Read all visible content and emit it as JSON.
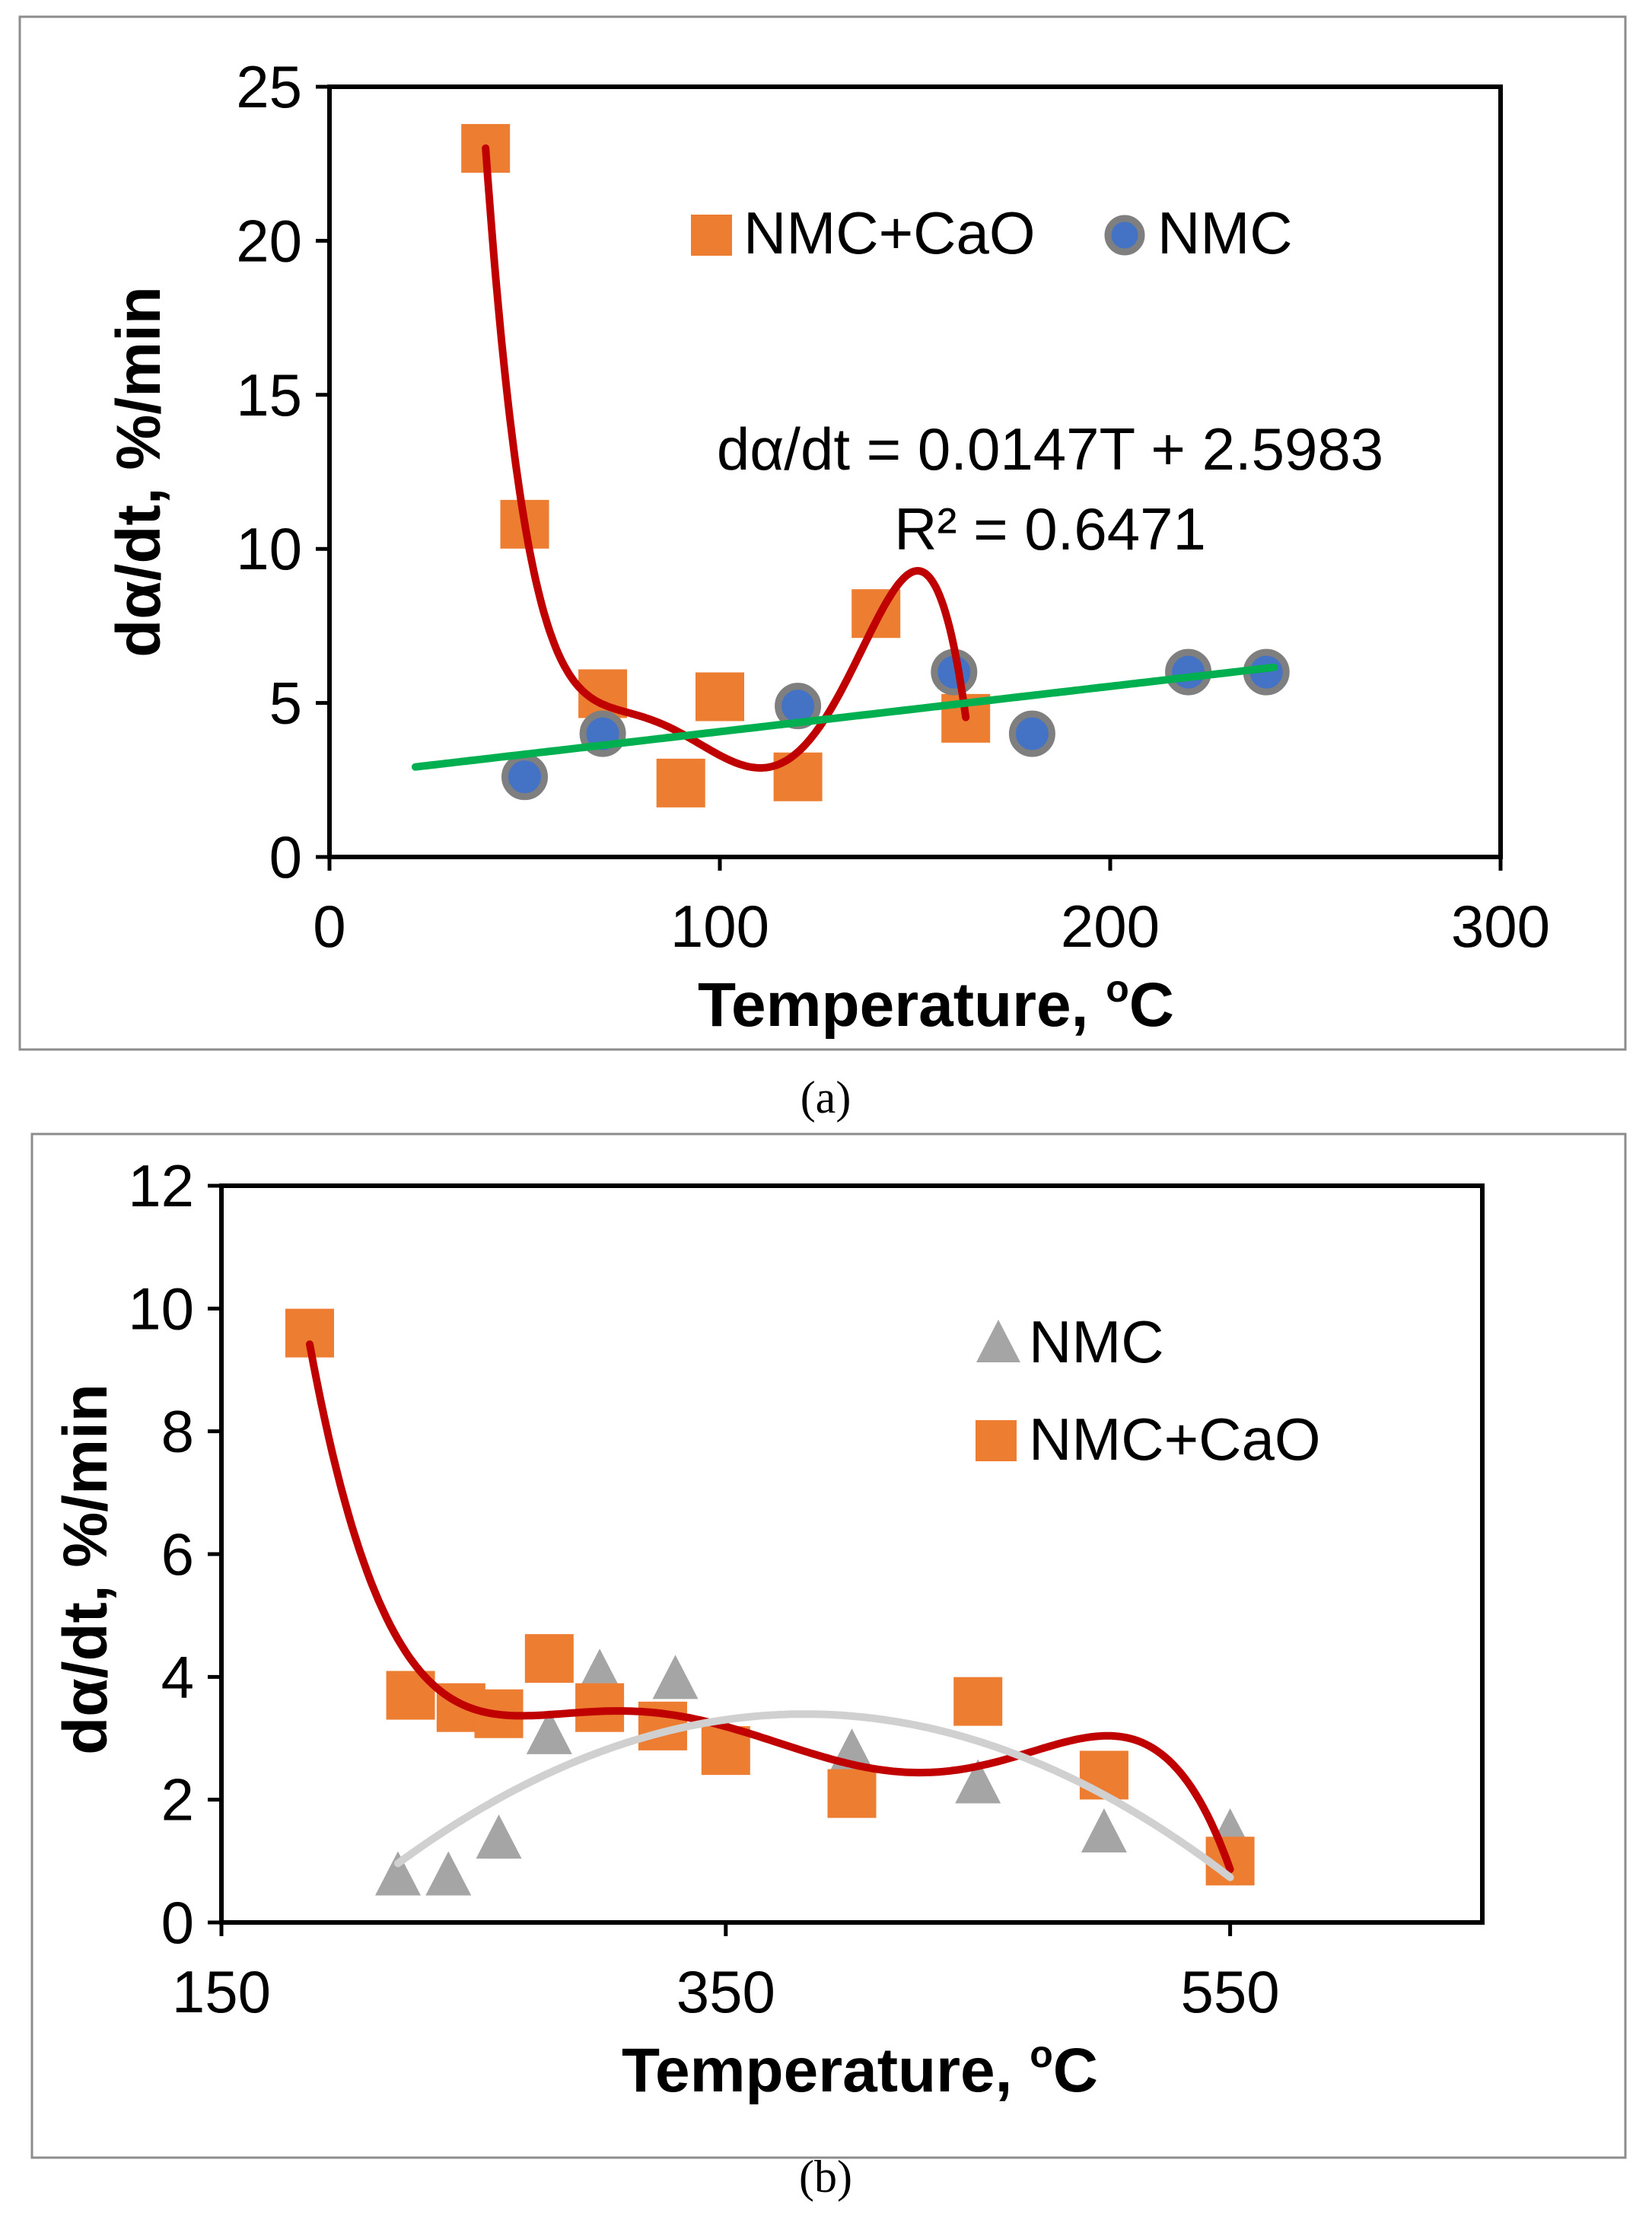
{
  "chart_data": [
    {
      "type": "scatter",
      "panel_label": "(a)",
      "xlabel": "Temperature, ",
      "xlabel_sup": "o",
      "xlabel_suffix": "C",
      "ylabel": "dα/dt, %/min",
      "xlim": [
        0,
        300
      ],
      "ylim": [
        0,
        25
      ],
      "x_ticks": [
        0,
        100,
        200,
        300
      ],
      "y_ticks": [
        0,
        5,
        10,
        15,
        20,
        25
      ],
      "grid": false,
      "legend_position": "top-right",
      "annotation": {
        "equation": "dα/dt = 0.0147T + 2.5983",
        "r_squared": "R² = 0.6471"
      },
      "series": [
        {
          "name": "NMC+CaO",
          "marker": "square",
          "color": "#ED7D31",
          "points": [
            [
              40,
              23.0
            ],
            [
              50,
              10.8
            ],
            [
              70,
              5.3
            ],
            [
              90,
              2.4
            ],
            [
              100,
              5.2
            ],
            [
              120,
              2.6
            ],
            [
              140,
              7.9
            ],
            [
              163,
              4.5
            ]
          ]
        },
        {
          "name": "NMC",
          "marker": "circle",
          "color": "#4472C4",
          "edge_color": "#7F7F7F",
          "points": [
            [
              50,
              2.6
            ],
            [
              70,
              4.0
            ],
            [
              120,
              4.9
            ],
            [
              160,
              6.0
            ],
            [
              180,
              4.0
            ],
            [
              220,
              6.0
            ],
            [
              240,
              6.0
            ]
          ]
        }
      ],
      "trendlines": [
        {
          "of_series": "NMC+CaO",
          "kind": "polynomial",
          "color": "#C00000",
          "x_range": [
            40,
            163
          ]
        },
        {
          "of_series": "NMC",
          "kind": "linear",
          "color": "#00B050",
          "slope": 0.0147,
          "intercept": 2.5983,
          "x_range": [
            22,
            242
          ]
        }
      ]
    },
    {
      "type": "scatter",
      "panel_label": "(b)",
      "xlabel": "Temperature, ",
      "xlabel_sup": "o",
      "xlabel_suffix": "C",
      "ylabel": "dα/dt, %/min",
      "xlim": [
        150,
        650
      ],
      "ylim": [
        0,
        12
      ],
      "x_ticks": [
        150,
        350,
        550
      ],
      "y_ticks": [
        0,
        2,
        4,
        6,
        8,
        10,
        12
      ],
      "grid": false,
      "legend_position": "top-right",
      "series": [
        {
          "name": "NMC",
          "marker": "triangle",
          "color": "#A5A5A5",
          "points": [
            [
              220,
              0.8
            ],
            [
              240,
              0.8
            ],
            [
              260,
              1.4
            ],
            [
              280,
              3.1
            ],
            [
              300,
              4.1
            ],
            [
              330,
              4.0
            ],
            [
              350,
              3.0
            ],
            [
              400,
              2.8
            ],
            [
              450,
              2.3
            ],
            [
              500,
              1.5
            ],
            [
              550,
              1.5
            ]
          ]
        },
        {
          "name": "NMC+CaO",
          "marker": "square",
          "color": "#ED7D31",
          "points": [
            [
              185,
              9.6
            ],
            [
              225,
              3.7
            ],
            [
              245,
              3.5
            ],
            [
              260,
              3.4
            ],
            [
              280,
              4.3
            ],
            [
              300,
              3.5
            ],
            [
              325,
              3.2
            ],
            [
              350,
              2.8
            ],
            [
              400,
              2.1
            ],
            [
              450,
              3.6
            ],
            [
              500,
              2.4
            ],
            [
              550,
              1.0
            ]
          ]
        }
      ],
      "trendlines": [
        {
          "of_series": "NMC+CaO",
          "kind": "polynomial",
          "color": "#C00000",
          "x_range": [
            185,
            550
          ]
        },
        {
          "of_series": "NMC",
          "kind": "polynomial",
          "color": "#D0D0D0",
          "x_range": [
            220,
            550
          ]
        }
      ]
    }
  ]
}
